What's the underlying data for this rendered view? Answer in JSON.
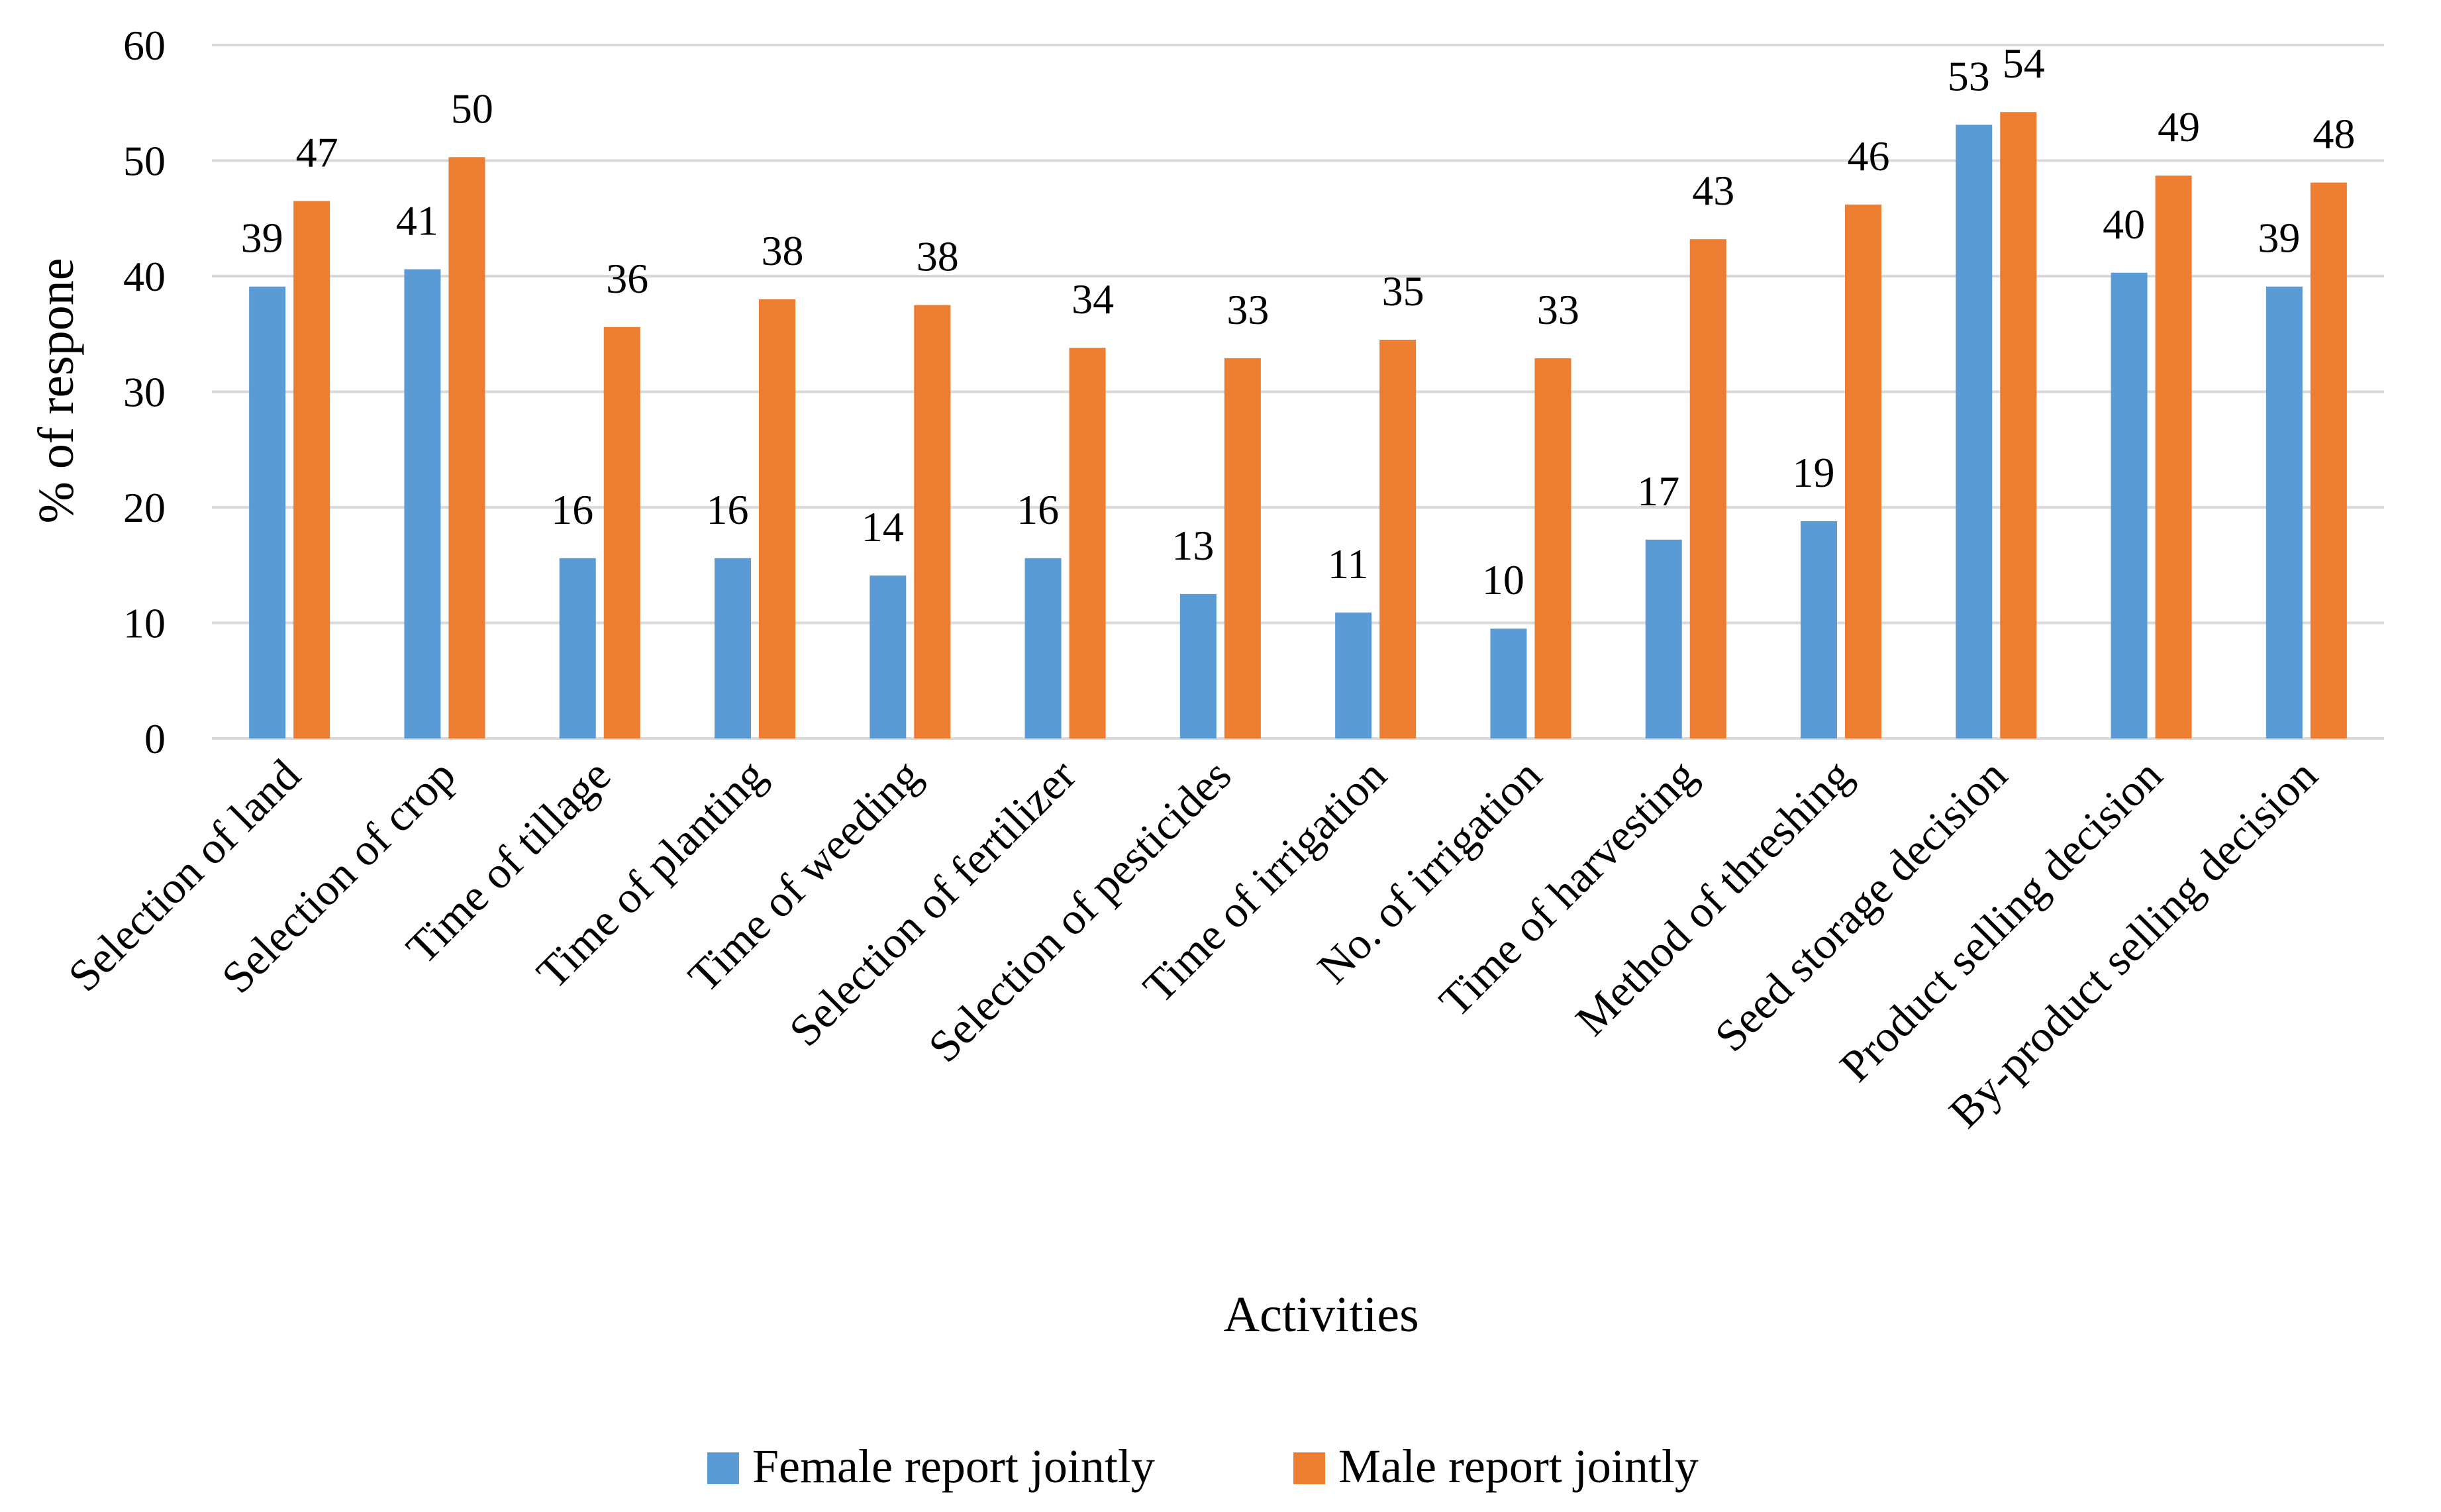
{
  "chart_data": {
    "type": "bar",
    "title": "",
    "xlabel": "Activities",
    "ylabel": "% of respone",
    "ylim": [
      0,
      60
    ],
    "yticks": [
      0,
      10,
      20,
      30,
      40,
      50,
      60
    ],
    "grid": true,
    "legend_position": "bottom",
    "categories": [
      "Selection of land",
      "Selection of crop",
      "Time of tillage",
      "Time of planting",
      "Time of weeding",
      "Selection of fertilizer",
      "Selection of pesticides",
      "Time of irrigation",
      "No. of irrigation",
      "Time of harvesting",
      "Method of threshing",
      "Seed storage decision",
      "Product selling decision",
      "By-product selling decision"
    ],
    "series": [
      {
        "name": "Female report jointly",
        "color": "#5B9BD5",
        "values": [
          39.1,
          40.6,
          15.6,
          15.6,
          14.1,
          15.6,
          12.5,
          10.9,
          9.5,
          17.2,
          18.8,
          53.1,
          40.3,
          39.1
        ],
        "labels": [
          "39",
          "41",
          "16",
          "16",
          "14",
          "16",
          "13",
          "11",
          "10",
          "17",
          "19",
          "53",
          "40",
          "39"
        ]
      },
      {
        "name": "Male report jointly",
        "color": "#ED7D31",
        "values": [
          46.5,
          50.3,
          35.6,
          38.0,
          37.5,
          33.8,
          32.9,
          34.5,
          32.9,
          43.2,
          46.2,
          54.2,
          48.7,
          48.1
        ],
        "labels": [
          "47",
          "50",
          "36",
          "38",
          "38",
          "34",
          "33",
          "35",
          "33",
          "43",
          "46",
          "54",
          "49",
          "48"
        ]
      }
    ]
  }
}
